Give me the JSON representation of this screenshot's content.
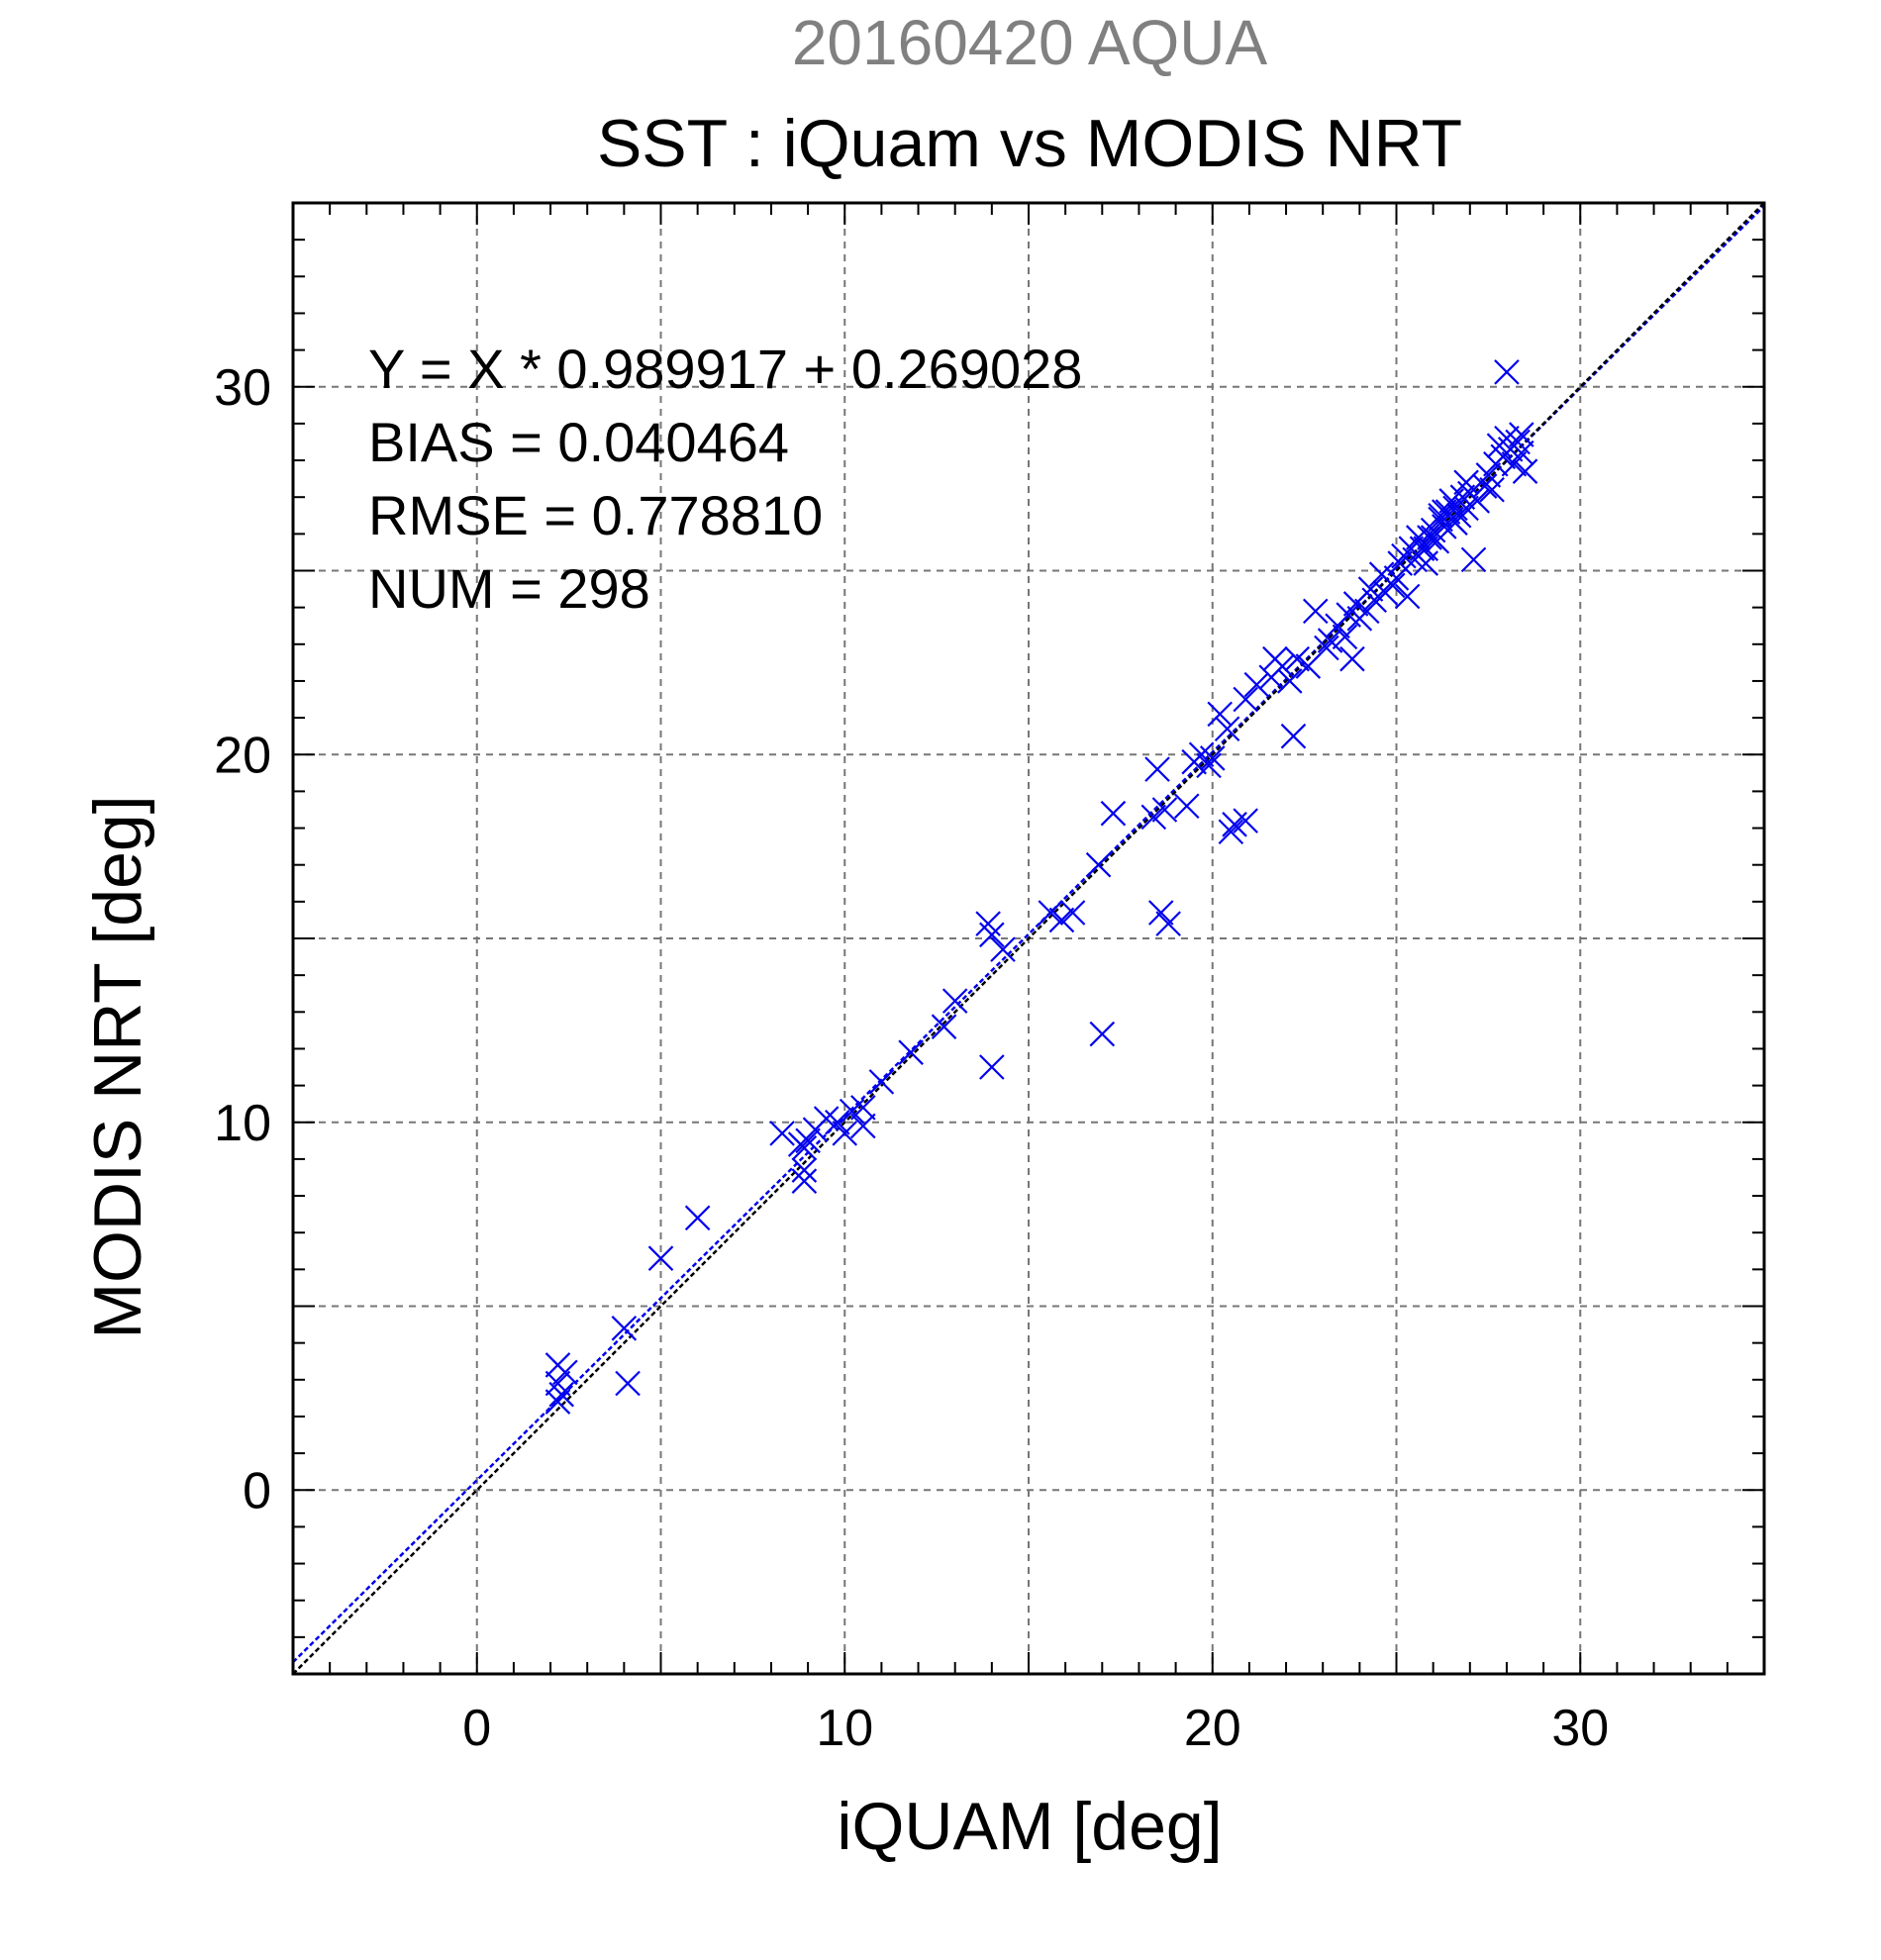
{
  "chart_data": {
    "type": "scatter",
    "suptitle": "20160420 AQUA",
    "title": "SST : iQuam vs MODIS NRT",
    "xlabel": "iQUAM [deg]",
    "ylabel": "MODIS NRT [deg]",
    "xlim": [
      -5,
      35
    ],
    "ylim": [
      -5,
      35
    ],
    "xticks": [
      "0",
      "10",
      "20",
      "30"
    ],
    "yticks": [
      "0",
      "10",
      "20",
      "30"
    ],
    "grid": true,
    "marker": "x",
    "marker_color": "#0000ee",
    "stats": [
      "Y = X * 0.989917 + 0.269028",
      "BIAS = 0.040464",
      "RMSE = 0.778810",
      "NUM = 298"
    ],
    "fit": {
      "slope": 0.989917,
      "intercept": 0.269028,
      "color": "#0000ee"
    },
    "identity": {
      "slope": 1,
      "intercept": 0,
      "color": "#000000"
    },
    "points": [
      [
        2.2,
        3.4
      ],
      [
        2.4,
        3.2
      ],
      [
        2.2,
        2.9
      ],
      [
        2.3,
        2.6
      ],
      [
        2.2,
        2.4
      ],
      [
        4.0,
        4.4
      ],
      [
        4.1,
        2.9
      ],
      [
        5.0,
        6.3
      ],
      [
        6.0,
        7.4
      ],
      [
        8.3,
        9.7
      ],
      [
        8.8,
        9.4
      ],
      [
        9.0,
        9.5
      ],
      [
        8.9,
        9.3
      ],
      [
        9.2,
        9.8
      ],
      [
        8.9,
        8.7
      ],
      [
        8.9,
        8.4
      ],
      [
        9.5,
        10.1
      ],
      [
        9.8,
        10.0
      ],
      [
        10.0,
        9.7
      ],
      [
        10.2,
        10.3
      ],
      [
        10.5,
        10.4
      ],
      [
        10.5,
        9.9
      ],
      [
        11.0,
        11.1
      ],
      [
        11.8,
        11.9
      ],
      [
        12.7,
        12.6
      ],
      [
        13.0,
        13.3
      ],
      [
        13.9,
        15.4
      ],
      [
        14.0,
        15.1
      ],
      [
        14.3,
        14.7
      ],
      [
        14.0,
        11.5
      ],
      [
        15.6,
        15.7
      ],
      [
        15.9,
        15.5
      ],
      [
        16.2,
        15.7
      ],
      [
        16.9,
        17.0
      ],
      [
        17.0,
        12.4
      ],
      [
        17.3,
        18.4
      ],
      [
        18.5,
        19.6
      ],
      [
        18.4,
        18.3
      ],
      [
        18.7,
        18.5
      ],
      [
        18.6,
        15.7
      ],
      [
        18.8,
        15.4
      ],
      [
        19.3,
        18.6
      ],
      [
        19.5,
        19.8
      ],
      [
        19.7,
        20.0
      ],
      [
        19.9,
        19.7
      ],
      [
        20.0,
        19.9
      ],
      [
        20.2,
        21.1
      ],
      [
        20.4,
        20.7
      ],
      [
        20.5,
        17.9
      ],
      [
        20.6,
        18.1
      ],
      [
        20.9,
        18.2
      ],
      [
        20.9,
        21.5
      ],
      [
        21.2,
        21.9
      ],
      [
        21.6,
        22.1
      ],
      [
        21.7,
        22.6
      ],
      [
        21.9,
        22.4
      ],
      [
        22.1,
        22.0
      ],
      [
        22.2,
        20.5
      ],
      [
        22.3,
        22.6
      ],
      [
        22.6,
        22.4
      ],
      [
        22.8,
        23.9
      ],
      [
        23.1,
        22.9
      ],
      [
        23.2,
        23.1
      ],
      [
        23.4,
        23.5
      ],
      [
        23.6,
        23.2
      ],
      [
        23.7,
        23.8
      ],
      [
        23.8,
        22.6
      ],
      [
        23.9,
        24.1
      ],
      [
        24.0,
        23.7
      ],
      [
        24.2,
        23.9
      ],
      [
        24.3,
        24.5
      ],
      [
        24.4,
        24.2
      ],
      [
        24.6,
        24.9
      ],
      [
        24.7,
        24.4
      ],
      [
        24.9,
        24.6
      ],
      [
        25.0,
        24.8
      ],
      [
        25.1,
        25.2
      ],
      [
        25.2,
        25.4
      ],
      [
        25.3,
        24.3
      ],
      [
        25.4,
        25.6
      ],
      [
        25.5,
        25.3
      ],
      [
        25.6,
        25.9
      ],
      [
        25.7,
        25.6
      ],
      [
        25.8,
        25.2
      ],
      [
        25.9,
        25.9
      ],
      [
        26.0,
        26.1
      ],
      [
        26.1,
        25.8
      ],
      [
        26.2,
        26.4
      ],
      [
        26.3,
        26.2
      ],
      [
        26.4,
        26.6
      ],
      [
        26.5,
        26.4
      ],
      [
        26.5,
        26.9
      ],
      [
        26.6,
        26.7
      ],
      [
        26.7,
        26.5
      ],
      [
        26.8,
        27.0
      ],
      [
        26.9,
        26.7
      ],
      [
        27.0,
        27.1
      ],
      [
        27.1,
        25.3
      ],
      [
        27.2,
        26.9
      ],
      [
        27.4,
        27.3
      ],
      [
        27.5,
        27.6
      ],
      [
        27.6,
        27.2
      ],
      [
        27.7,
        27.9
      ],
      [
        27.8,
        28.4
      ],
      [
        27.9,
        28.1
      ],
      [
        28.0,
        30.4
      ],
      [
        28.0,
        28.6
      ],
      [
        28.1,
        28.3
      ],
      [
        28.2,
        27.9
      ],
      [
        28.3,
        28.5
      ],
      [
        28.4,
        28.2
      ],
      [
        28.4,
        28.7
      ],
      [
        28.5,
        27.7
      ],
      [
        25.8,
        25.6
      ],
      [
        26.2,
        26.5
      ],
      [
        26.6,
        26.3
      ],
      [
        26.9,
        27.4
      ],
      [
        26.0,
        25.9
      ],
      [
        26.3,
        26.6
      ]
    ]
  }
}
